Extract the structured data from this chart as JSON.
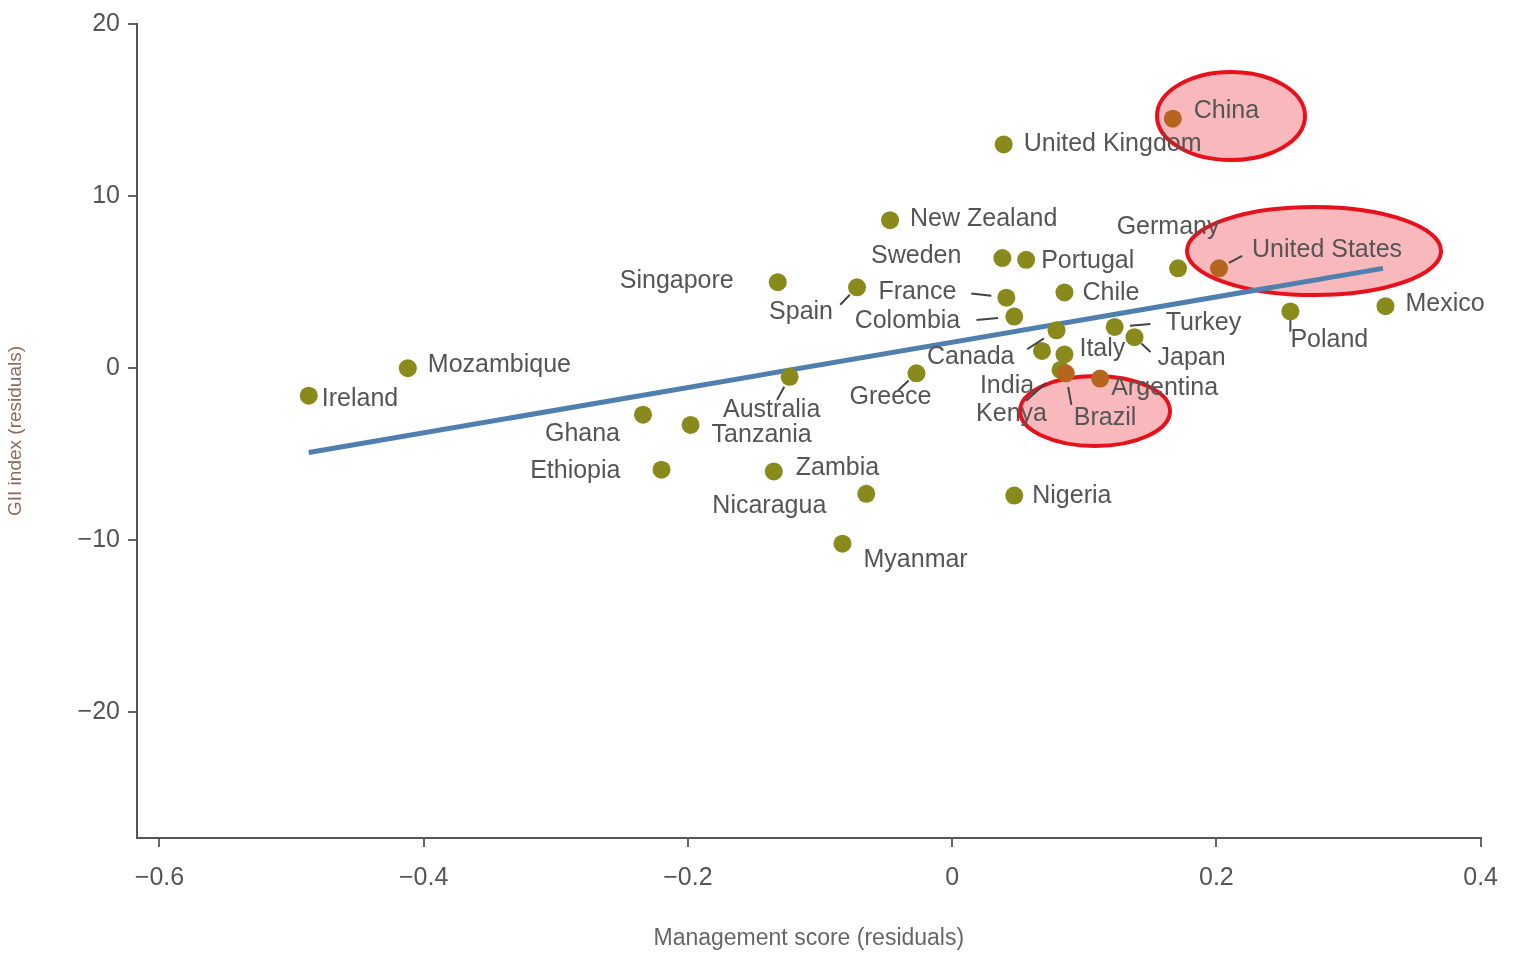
{
  "chart_data": {
    "type": "scatter",
    "xlabel": "Management score (residuals)",
    "ylabel": "GII index (residuals)",
    "xlim": [
      -0.617,
      0.4
    ],
    "ylim": [
      -27.3,
      20
    ],
    "xticks": [
      {
        "value": -0.6,
        "label": "−0.6"
      },
      {
        "value": -0.4,
        "label": "−0.4"
      },
      {
        "value": -0.2,
        "label": "−0.2"
      },
      0,
      0.2,
      0.4
    ],
    "yticks": [
      {
        "value": -20,
        "label": "−20"
      },
      {
        "value": -10,
        "label": "−10"
      },
      0,
      10,
      20
    ],
    "grid": false,
    "legend": false,
    "series": [
      {
        "marker": "circle",
        "x": [
          -0.487,
          -0.412,
          -0.132,
          -0.072,
          -0.234,
          -0.198,
          -0.123,
          -0.22,
          -0.135,
          -0.065,
          -0.083,
          -0.027,
          -0.047,
          0.038,
          0.056,
          0.041,
          0.047,
          0.085,
          0.079,
          0.068,
          0.085,
          0.082,
          0.086,
          0.112,
          0.123,
          0.138,
          0.171,
          0.202,
          0.167,
          0.039,
          0.256,
          0.328,
          0.047
        ],
        "values": [
          -1.6,
          0,
          5.0,
          4.7,
          -2.7,
          -3.3,
          -0.5,
          -5.9,
          -6.0,
          -7.3,
          -10.2,
          -0.3,
          8.6,
          6.4,
          6.3,
          4.1,
          3.0,
          4.4,
          2.2,
          1.0,
          0.8,
          -0.1,
          -0.3,
          -0.6,
          2.4,
          1.8,
          5.8,
          5.8,
          14.5,
          13.0,
          3.3,
          3.6,
          -7.4
        ],
        "colors": [
          "#8a8a1c",
          "#8a8a1c",
          "#8a8a1c",
          "#8a8a1c",
          "#8a8a1c",
          "#8a8a1c",
          "#8a8a1c",
          "#8a8a1c",
          "#8a8a1c",
          "#8a8a1c",
          "#8a8a1c",
          "#8a8a1c",
          "#8a8a1c",
          "#8a8a1c",
          "#8a8a1c",
          "#8a8a1c",
          "#8a8a1c",
          "#8a8a1c",
          "#8a8a1c",
          "#8a8a1c",
          "#8a8a1c",
          "#8a8a1c",
          "#b5651d",
          "#b5651d",
          "#8a8a1c",
          "#8a8a1c",
          "#8a8a1c",
          "#b5651d",
          "#b5651d",
          "#8a8a1c",
          "#8a8a1c",
          "#8a8a1c",
          "#8a8a1c"
        ]
      },
      {
        "type": "line",
        "color": "#4f7fae",
        "marker": "none",
        "line_style": "solid",
        "x": [
          -0.487,
          0.326
        ],
        "values": [
          -4.9,
          5.8
        ]
      }
    ],
    "annotations": [
      {
        "text": "Ireland",
        "x": -0.487,
        "y": -1.6
      },
      {
        "text": "Mozambique",
        "x": -0.412,
        "y": 0
      },
      {
        "text": "Singapore",
        "x": -0.132,
        "y": 5.0
      },
      {
        "text": "Spain",
        "x": -0.072,
        "y": 4.7
      },
      {
        "text": "Ghana",
        "x": -0.234,
        "y": -2.7
      },
      {
        "text": "Tanzania",
        "x": -0.198,
        "y": -3.3
      },
      {
        "text": "Australia",
        "x": -0.123,
        "y": -0.5
      },
      {
        "text": "Ethiopia",
        "x": -0.22,
        "y": -5.9
      },
      {
        "text": "Zambia",
        "x": -0.135,
        "y": -6.0
      },
      {
        "text": "Nicaragua",
        "x": -0.065,
        "y": -7.3
      },
      {
        "text": "Myanmar",
        "x": -0.083,
        "y": -10.2
      },
      {
        "text": "Greece",
        "x": -0.027,
        "y": -0.3
      },
      {
        "text": "New Zealand",
        "x": -0.047,
        "y": 8.6
      },
      {
        "text": "Sweden",
        "x": 0.038,
        "y": 6.4
      },
      {
        "text": "Portugal",
        "x": 0.056,
        "y": 6.3
      },
      {
        "text": "France",
        "x": 0.041,
        "y": 4.1
      },
      {
        "text": "Colombia",
        "x": 0.047,
        "y": 3.0
      },
      {
        "text": "Chile",
        "x": 0.085,
        "y": 4.4
      },
      {
        "text": "Canada",
        "x": 0.079,
        "y": 2.2
      },
      {
        "text": "India",
        "x": 0.068,
        "y": 1.0
      },
      {
        "text": "Italy",
        "x": 0.085,
        "y": 0.8
      },
      {
        "text": "Kenya",
        "x": 0.082,
        "y": -0.1
      },
      {
        "text": "Brazil",
        "x": 0.086,
        "y": -0.3
      },
      {
        "text": "Argentina",
        "x": 0.112,
        "y": -0.6
      },
      {
        "text": "Turkey",
        "x": 0.123,
        "y": 2.4
      },
      {
        "text": "Japan",
        "x": 0.138,
        "y": 1.8
      },
      {
        "text": "Germany",
        "x": 0.171,
        "y": 5.8
      },
      {
        "text": "United States",
        "x": 0.202,
        "y": 5.8
      },
      {
        "text": "China",
        "x": 0.167,
        "y": 14.5
      },
      {
        "text": "United Kingdom",
        "x": 0.039,
        "y": 13.0
      },
      {
        "text": "Poland",
        "x": 0.256,
        "y": 3.3
      },
      {
        "text": "Mexico",
        "x": 0.328,
        "y": 3.6
      },
      {
        "text": "Nigeria",
        "x": 0.047,
        "y": -7.4
      }
    ]
  }
}
